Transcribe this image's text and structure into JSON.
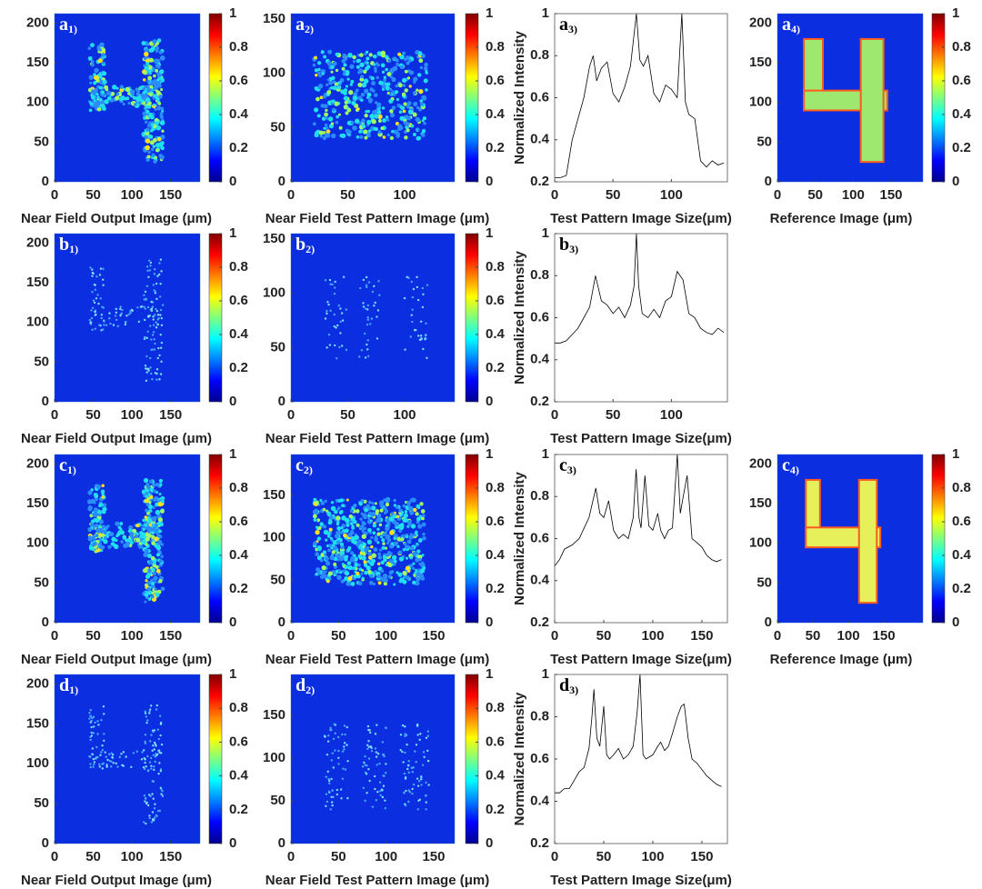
{
  "chart_data": [
    {
      "type": "heatmap",
      "panel_label": "a",
      "panel_sub": "1)",
      "xlabel": "Near Field Output Image (μm)",
      "xlim": [
        0,
        188
      ],
      "ylim": [
        0,
        212
      ],
      "xticks": [
        0,
        50,
        100,
        150
      ],
      "yticks": [
        0,
        50,
        100,
        150,
        200
      ],
      "clim": [
        0,
        1
      ],
      "cticks": [
        0,
        0.2,
        0.4,
        0.6,
        0.8,
        1
      ]
    },
    {
      "type": "heatmap",
      "panel_label": "a",
      "panel_sub": "2)",
      "xlabel": "Near Field Test Pattern Image (μm)",
      "xlim": [
        0,
        144
      ],
      "ylim": [
        0,
        155
      ],
      "xticks": [
        0,
        50,
        100
      ],
      "yticks": [
        0,
        50,
        100,
        150
      ],
      "clim": [
        0,
        1
      ],
      "cticks": [
        0,
        0.2,
        0.4,
        0.6,
        0.8,
        1
      ]
    },
    {
      "type": "line",
      "panel_label": "a",
      "panel_sub": "3)",
      "xlabel": "Test Pattern Image Size(μm)",
      "ylabel": "Normalized Intensity",
      "xlim": [
        0,
        148
      ],
      "ylim": [
        0.2,
        1
      ],
      "xticks": [
        0,
        50,
        100
      ],
      "yticks": [
        0.2,
        0.4,
        0.6,
        0.8,
        1
      ],
      "color": "#000000",
      "x": [
        0,
        5,
        10,
        15,
        20,
        25,
        30,
        33,
        36,
        40,
        45,
        50,
        55,
        60,
        65,
        70,
        73,
        76,
        80,
        85,
        90,
        95,
        100,
        105,
        109,
        112,
        115,
        120,
        125,
        130,
        135,
        140,
        145
      ],
      "values": [
        0.22,
        0.22,
        0.23,
        0.4,
        0.5,
        0.6,
        0.75,
        0.8,
        0.68,
        0.74,
        0.77,
        0.62,
        0.58,
        0.65,
        0.75,
        1.0,
        0.78,
        0.75,
        0.8,
        0.62,
        0.58,
        0.66,
        0.64,
        0.6,
        1.0,
        0.58,
        0.52,
        0.5,
        0.3,
        0.27,
        0.3,
        0.28,
        0.29
      ]
    },
    {
      "type": "heatmap",
      "panel_label": "a",
      "panel_sub": "4)",
      "xlabel": "Reference Image (μm)",
      "xlim": [
        0,
        192
      ],
      "ylim": [
        0,
        212
      ],
      "xticks": [
        0,
        50,
        100,
        150
      ],
      "yticks": [
        0,
        50,
        100,
        150,
        200
      ],
      "clim": [
        0,
        1
      ],
      "cticks": [
        0,
        0.2,
        0.4,
        0.6,
        0.8,
        1
      ]
    },
    {
      "type": "heatmap",
      "panel_label": "b",
      "panel_sub": "1)",
      "xlabel": "Near Field Output Image (μm)",
      "xlim": [
        0,
        188
      ],
      "ylim": [
        0,
        212
      ],
      "xticks": [
        0,
        50,
        100,
        150
      ],
      "yticks": [
        0,
        50,
        100,
        150,
        200
      ],
      "clim": [
        0,
        1
      ],
      "cticks": [
        0,
        0.2,
        0.4,
        0.6,
        0.8,
        1
      ]
    },
    {
      "type": "heatmap",
      "panel_label": "b",
      "panel_sub": "2)",
      "xlabel": "Near Field Test Pattern Image (μm)",
      "xlim": [
        0,
        144
      ],
      "ylim": [
        0,
        155
      ],
      "xticks": [
        0,
        50,
        100
      ],
      "yticks": [
        0,
        50,
        100,
        150
      ],
      "clim": [
        0,
        1
      ],
      "cticks": [
        0,
        0.2,
        0.4,
        0.6,
        0.8,
        1
      ]
    },
    {
      "type": "line",
      "panel_label": "b",
      "panel_sub": "3)",
      "xlabel": "Test Pattern Image Size(μm)",
      "ylabel": "Normalized Intensity",
      "xlim": [
        0,
        148
      ],
      "ylim": [
        0.2,
        1
      ],
      "xticks": [
        0,
        50,
        100
      ],
      "yticks": [
        0.2,
        0.4,
        0.6,
        0.8,
        1
      ],
      "color": "#000000",
      "x": [
        0,
        5,
        10,
        15,
        20,
        25,
        30,
        35,
        40,
        45,
        50,
        55,
        60,
        65,
        68,
        70,
        72,
        75,
        80,
        85,
        90,
        95,
        100,
        105,
        110,
        115,
        120,
        125,
        130,
        135,
        140,
        145
      ],
      "values": [
        0.48,
        0.48,
        0.49,
        0.52,
        0.55,
        0.6,
        0.65,
        0.8,
        0.68,
        0.66,
        0.62,
        0.65,
        0.6,
        0.66,
        0.75,
        1.0,
        0.75,
        0.62,
        0.6,
        0.64,
        0.6,
        0.68,
        0.7,
        0.82,
        0.78,
        0.62,
        0.6,
        0.55,
        0.53,
        0.52,
        0.55,
        0.53
      ]
    },
    {
      "type": "heatmap",
      "panel_label": "c",
      "panel_sub": "1)",
      "xlabel": "Near Field Output Image (μm)",
      "xlim": [
        0,
        188
      ],
      "ylim": [
        0,
        212
      ],
      "xticks": [
        0,
        50,
        100,
        150
      ],
      "yticks": [
        0,
        50,
        100,
        150,
        200
      ],
      "clim": [
        0,
        1
      ],
      "cticks": [
        0,
        0.2,
        0.4,
        0.6,
        0.8,
        1
      ]
    },
    {
      "type": "heatmap",
      "panel_label": "c",
      "panel_sub": "2)",
      "xlabel": "Near Field Test Pattern Image (μm)",
      "xlim": [
        0,
        172
      ],
      "ylim": [
        0,
        198
      ],
      "xticks": [
        0,
        50,
        100,
        150
      ],
      "yticks": [
        0,
        50,
        100,
        150
      ],
      "clim": [
        0,
        1
      ],
      "cticks": [
        0,
        0.2,
        0.4,
        0.6,
        0.8,
        1
      ]
    },
    {
      "type": "line",
      "panel_label": "c",
      "panel_sub": "3)",
      "xlabel": "Test Pattern Image Size(μm)",
      "ylabel": "Normalized Intensity",
      "xlim": [
        0,
        176
      ],
      "ylim": [
        0.2,
        1
      ],
      "xticks": [
        0,
        50,
        100,
        150
      ],
      "yticks": [
        0.2,
        0.4,
        0.6,
        0.8,
        1
      ],
      "color": "#000000",
      "x": [
        0,
        5,
        10,
        18,
        25,
        30,
        35,
        42,
        46,
        50,
        55,
        60,
        65,
        70,
        75,
        80,
        83,
        86,
        88,
        92,
        96,
        100,
        105,
        108,
        112,
        116,
        120,
        125,
        128,
        131,
        135,
        140,
        145,
        150,
        155,
        160,
        165,
        170
      ],
      "values": [
        0.47,
        0.5,
        0.55,
        0.57,
        0.6,
        0.65,
        0.7,
        0.84,
        0.72,
        0.7,
        0.78,
        0.64,
        0.6,
        0.62,
        0.6,
        0.7,
        0.93,
        0.7,
        0.65,
        0.9,
        0.66,
        0.64,
        0.72,
        0.64,
        0.6,
        0.64,
        0.65,
        1.0,
        0.72,
        0.8,
        0.9,
        0.6,
        0.58,
        0.56,
        0.52,
        0.5,
        0.49,
        0.5
      ]
    },
    {
      "type": "heatmap",
      "panel_label": "c",
      "panel_sub": "4)",
      "xlabel": "Reference Image (μm)",
      "xlim": [
        0,
        205
      ],
      "ylim": [
        0,
        212
      ],
      "xticks": [
        0,
        50,
        100,
        150
      ],
      "yticks": [
        0,
        50,
        100,
        150,
        200
      ],
      "clim": [
        0,
        1
      ],
      "cticks": [
        0,
        0.2,
        0.4,
        0.6,
        0.8,
        1
      ]
    },
    {
      "type": "heatmap",
      "panel_label": "d",
      "panel_sub": "1)",
      "xlabel": "Near Field Output Image (μm)",
      "xlim": [
        0,
        188
      ],
      "ylim": [
        0,
        212
      ],
      "xticks": [
        0,
        50,
        100,
        150
      ],
      "yticks": [
        0,
        50,
        100,
        150,
        200
      ],
      "clim": [
        0,
        1
      ],
      "cticks": [
        0,
        0.2,
        0.4,
        0.6,
        0.8,
        1
      ]
    },
    {
      "type": "heatmap",
      "panel_label": "d",
      "panel_sub": "2)",
      "xlabel": "Near Field Test Pattern Image (μm)",
      "xlim": [
        0,
        172
      ],
      "ylim": [
        0,
        198
      ],
      "xticks": [
        0,
        50,
        100,
        150
      ],
      "yticks": [
        0,
        50,
        100,
        150
      ],
      "clim": [
        0,
        1
      ],
      "cticks": [
        0,
        0.2,
        0.4,
        0.6,
        0.8,
        1
      ]
    },
    {
      "type": "line",
      "panel_label": "d",
      "panel_sub": "3)",
      "xlabel": "Test Pattern Image Size(μm)",
      "ylabel": "Normalized Intensity",
      "xlim": [
        0,
        176
      ],
      "ylim": [
        0.2,
        1
      ],
      "xticks": [
        0,
        50,
        100,
        150
      ],
      "yticks": [
        0.2,
        0.4,
        0.6,
        0.8,
        1
      ],
      "color": "#000000",
      "x": [
        0,
        5,
        10,
        15,
        20,
        25,
        30,
        35,
        38,
        40,
        43,
        46,
        50,
        53,
        56,
        60,
        65,
        70,
        75,
        80,
        84,
        87,
        90,
        93,
        100,
        105,
        108,
        112,
        116,
        120,
        125,
        129,
        132,
        136,
        140,
        145,
        150,
        155,
        160,
        165,
        170
      ],
      "values": [
        0.44,
        0.44,
        0.46,
        0.46,
        0.5,
        0.54,
        0.56,
        0.65,
        0.8,
        0.93,
        0.7,
        0.66,
        0.85,
        0.62,
        0.6,
        0.62,
        0.65,
        0.6,
        0.62,
        0.66,
        0.82,
        1.0,
        0.62,
        0.6,
        0.62,
        0.66,
        0.68,
        0.64,
        0.66,
        0.72,
        0.8,
        0.85,
        0.86,
        0.7,
        0.6,
        0.58,
        0.55,
        0.52,
        0.5,
        0.48,
        0.47
      ]
    }
  ]
}
